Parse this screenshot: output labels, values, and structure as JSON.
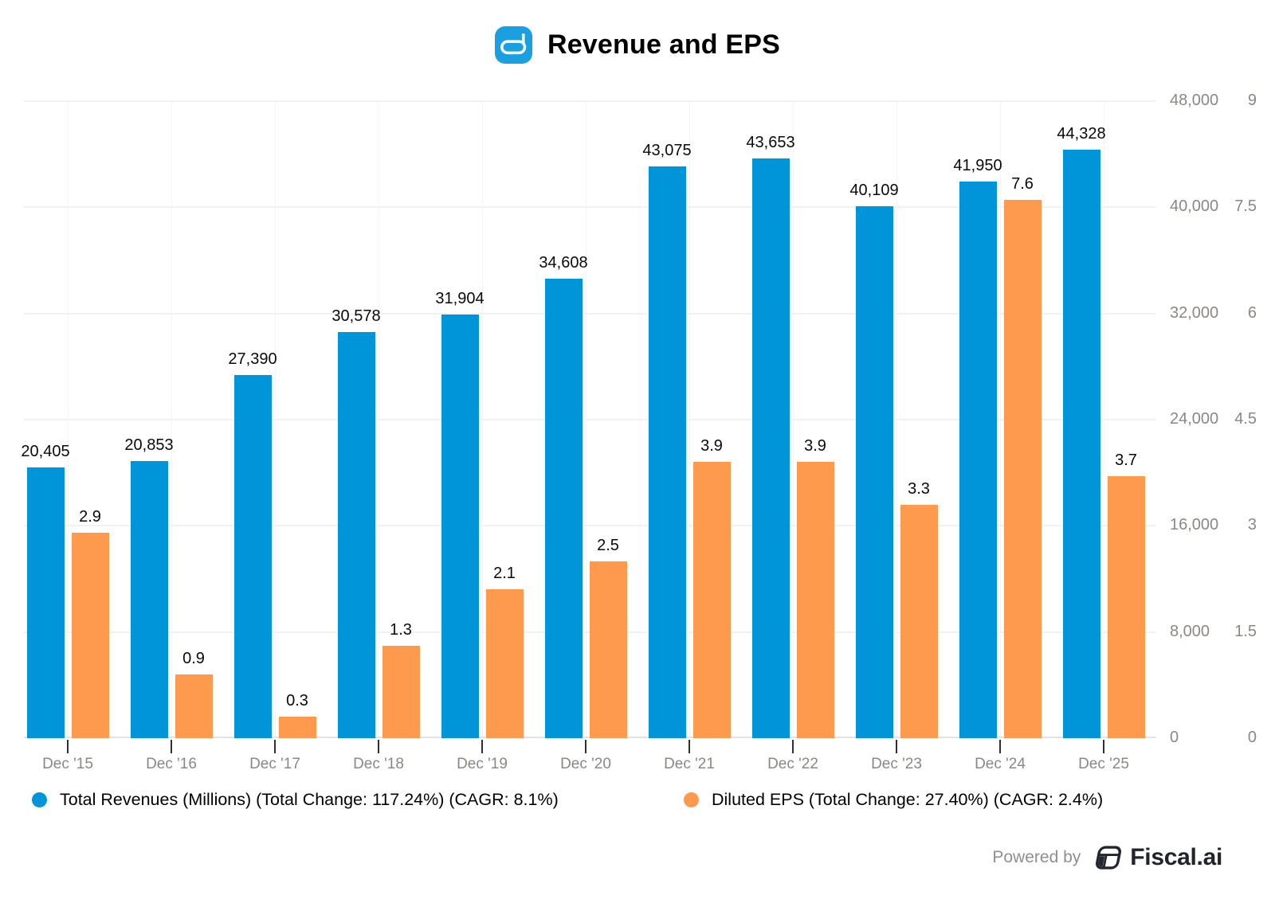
{
  "header": {
    "title": "Revenue and EPS",
    "logo": "abbott-logo"
  },
  "chart_data": {
    "type": "bar",
    "title": "Revenue and EPS",
    "categories": [
      "Dec '15",
      "Dec '16",
      "Dec '17",
      "Dec '18",
      "Dec '19",
      "Dec '20",
      "Dec '21",
      "Dec '22",
      "Dec '23",
      "Dec '24",
      "Dec '25"
    ],
    "series": [
      {
        "name": "Total Revenues (Millions) (Total Change: 117.24%) (CAGR: 8.1%)",
        "axis": "revenue",
        "color": "#0095d8",
        "values": [
          20405,
          20853,
          27390,
          30578,
          31904,
          34608,
          43075,
          43653,
          40109,
          41950,
          44328
        ]
      },
      {
        "name": "Diluted EPS (Total Change: 27.40%) (CAGR: 2.4%)",
        "axis": "eps",
        "color": "#fd9a4e",
        "values": [
          2.9,
          0.9,
          0.3,
          1.3,
          2.1,
          2.5,
          3.9,
          3.9,
          3.3,
          7.6,
          3.7
        ]
      }
    ],
    "axes": {
      "revenue": {
        "min": 0,
        "max": 48000,
        "step": 8000,
        "side": "right-inner"
      },
      "eps": {
        "min": 0,
        "max": 9,
        "step": 1.5,
        "side": "right-outer"
      }
    },
    "grid": true,
    "legend_position": "bottom",
    "data_labels": true
  },
  "footer": {
    "powered_by": "Powered by",
    "brand": "Fiscal.ai"
  }
}
